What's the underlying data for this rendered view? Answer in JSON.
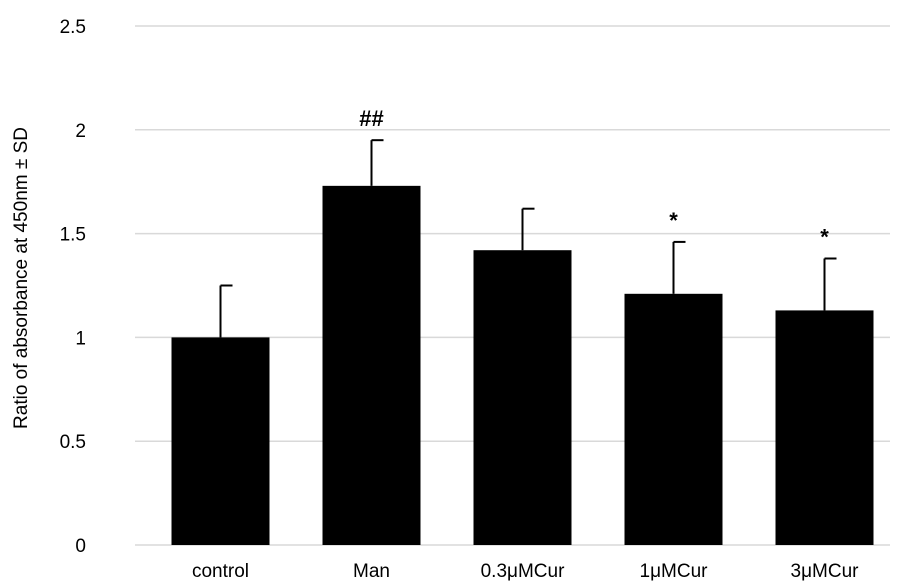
{
  "chart_data": {
    "type": "bar",
    "title": "",
    "xlabel": "",
    "ylabel": "Ratio of absorbance at 450nm ± SD",
    "ylim": [
      0,
      2.5
    ],
    "yticks": [
      0,
      0.5,
      1,
      1.5,
      2,
      2.5
    ],
    "ytick_labels": [
      "0",
      "0.5",
      "1",
      "1.5",
      "2",
      "2.5"
    ],
    "grid": true,
    "bar_color": "#000000",
    "grid_color": "#d9d9d9",
    "categories": [
      "control",
      "Man",
      "0.3μMCur",
      "1μMCur",
      "3μMCur"
    ],
    "values": [
      1.0,
      1.73,
      1.42,
      1.21,
      1.13
    ],
    "errors": [
      0.25,
      0.22,
      0.2,
      0.25,
      0.25
    ],
    "annotations": [
      "",
      "##",
      "",
      "*",
      "*"
    ]
  }
}
